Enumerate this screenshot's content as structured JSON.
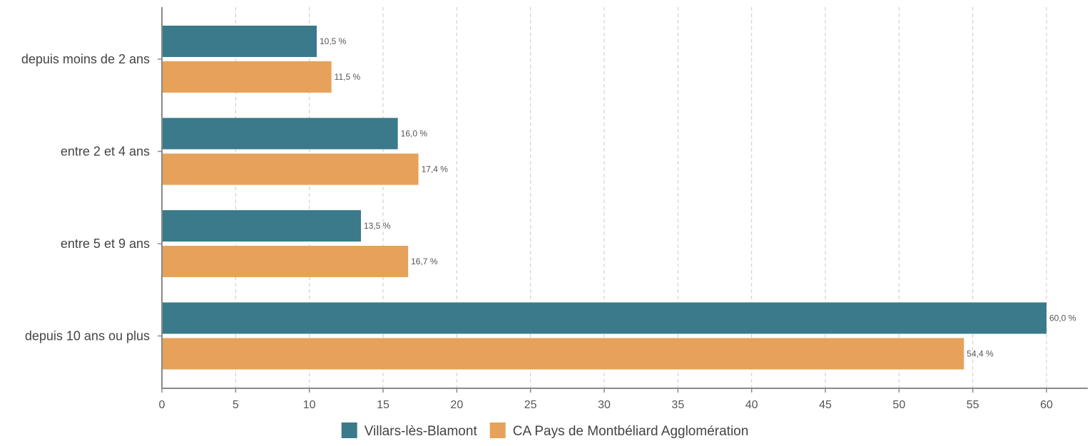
{
  "chart_data": {
    "type": "bar",
    "orientation": "horizontal",
    "title": "",
    "xlabel": "",
    "ylabel": "",
    "categories": [
      "depuis moins de 2 ans",
      "entre 2 et 4 ans",
      "entre 5 et 9 ans",
      "depuis 10 ans ou plus"
    ],
    "series": [
      {
        "name": "Villars-lès-Blamont",
        "color": "#3a7a8a",
        "values": [
          10.5,
          16.0,
          13.5,
          60.0
        ],
        "labels": [
          "10,5 %",
          "16,0 %",
          "13,5 %",
          "60,0 %"
        ]
      },
      {
        "name": "CA Pays de Montbéliard Agglomération",
        "color": "#e6a25a",
        "values": [
          11.5,
          17.4,
          16.7,
          54.4
        ],
        "labels": [
          "11,5 %",
          "17,4 %",
          "16,7 %",
          "54,4 %"
        ]
      }
    ],
    "xlim": [
      0,
      62.8
    ],
    "xticks": [
      0,
      5,
      10,
      15,
      20,
      25,
      30,
      35,
      40,
      45,
      50,
      55,
      60
    ],
    "grid": "vertical-dashed",
    "legend_position": "bottom-center"
  }
}
